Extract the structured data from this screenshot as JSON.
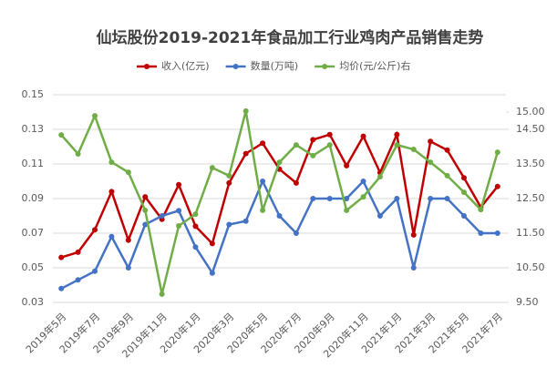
{
  "chart_data": {
    "type": "line",
    "title": "仙坛股份2019-2021年食品加工行业鸡肉产品销售走势",
    "categories": [
      "2019年5月",
      null,
      "2019年7月",
      null,
      "2019年9月",
      null,
      "2019年11月",
      null,
      "2020年1月",
      null,
      "2020年3月",
      null,
      "2020年5月",
      null,
      "2020年7月",
      null,
      "2020年9月",
      null,
      "2020年11月",
      null,
      "2021年1月",
      null,
      "2021年3月",
      null,
      "2021年5月",
      null,
      "2021年7月"
    ],
    "series": [
      {
        "name": "收入(亿元)",
        "color": "#c00000",
        "values": [
          0.056,
          0.059,
          0.072,
          0.094,
          0.066,
          0.091,
          0.078,
          0.098,
          0.074,
          0.064,
          0.099,
          0.116,
          0.122,
          0.107,
          0.099,
          0.124,
          0.127,
          0.109,
          0.126,
          0.105,
          0.127,
          0.069,
          0.123,
          0.118,
          0.102,
          0.085,
          0.097
        ]
      },
      {
        "name": "数量(万吨)",
        "color": "#4472c4",
        "values": [
          0.038,
          0.043,
          0.048,
          0.068,
          0.05,
          0.075,
          0.08,
          0.083,
          0.062,
          0.047,
          0.075,
          0.077,
          0.1,
          0.08,
          0.07,
          0.09,
          0.09,
          0.09,
          0.1,
          0.08,
          0.09,
          0.05,
          0.09,
          0.09,
          0.08,
          0.07,
          0.07
        ]
      },
      {
        "name": "均价(元/公斤)右",
        "color": "#70ad47",
        "axis": "y2",
        "values": [
          14.34,
          13.79,
          14.89,
          13.55,
          13.26,
          12.16,
          9.74,
          11.71,
          12.05,
          13.39,
          13.16,
          15.03,
          12.16,
          13.55,
          14.05,
          13.74,
          14.05,
          12.16,
          12.55,
          13.13,
          14.05,
          13.92,
          13.55,
          13.16,
          12.68,
          12.18,
          13.84
        ]
      }
    ],
    "ylim": [
      0.03,
      0.15
    ],
    "yticks": [
      0.03,
      0.05,
      0.07,
      0.09,
      0.11,
      0.13,
      0.15
    ],
    "y2lim": [
      9.5,
      15.5
    ],
    "y2ticks": [
      {
        "value": 9.5,
        "label": "9.50"
      },
      {
        "value": 10.5,
        "label": "10.50"
      },
      {
        "value": 11.5,
        "label": "11.50"
      },
      {
        "value": 12.5,
        "label": "12.50"
      },
      {
        "value": 13.5,
        "label": "13.50"
      },
      {
        "value": 14.5,
        "label": "14.50"
      },
      {
        "value": 15,
        "label": "15.00"
      }
    ],
    "grid": true,
    "legend": "top"
  }
}
